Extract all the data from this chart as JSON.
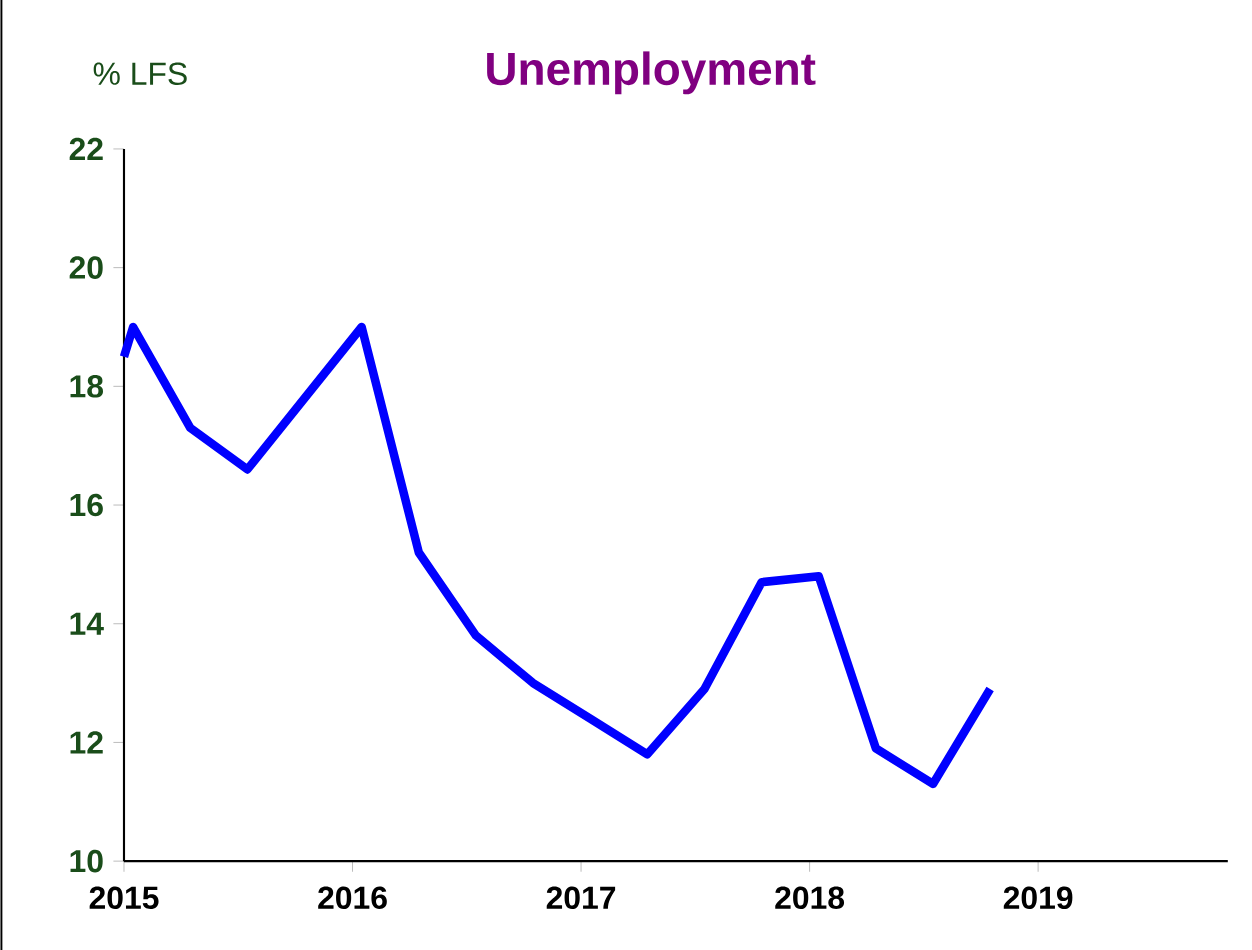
{
  "chart_data": {
    "type": "line",
    "title": "Unemployment",
    "ylabel": "%  LFS",
    "x": [
      2015.0,
      2015.04,
      2015.29,
      2015.54,
      2015.79,
      2016.04,
      2016.29,
      2016.54,
      2016.79,
      2017.04,
      2017.29,
      2017.54,
      2017.79,
      2018.04,
      2018.29,
      2018.54,
      2018.79
    ],
    "series": [
      {
        "color": "#0000ff",
        "values": [
          18.5,
          19.0,
          17.3,
          16.6,
          17.8,
          19.0,
          15.2,
          13.8,
          13.0,
          12.4,
          11.8,
          12.9,
          14.7,
          14.8,
          11.9,
          11.3,
          12.9
        ]
      }
    ],
    "xlim": [
      2015,
      2019.83
    ],
    "xticks": [
      2015,
      2016,
      2017,
      2018,
      2019
    ],
    "ylim": [
      10,
      22
    ],
    "yticks": [
      10,
      12,
      14,
      16,
      18,
      20,
      22
    ],
    "grid": false,
    "marker": "none",
    "line_style": "solid"
  }
}
